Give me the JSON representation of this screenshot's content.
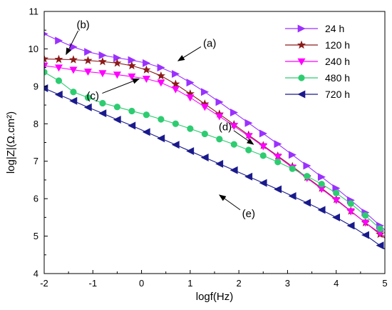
{
  "chart_data": {
    "type": "line",
    "xlabel": "logf(Hz)",
    "ylabel": "log|Z|(Ω.cm²)",
    "xlim": [
      -2,
      5
    ],
    "ylim": [
      4,
      11
    ],
    "x_ticks": [
      "-2",
      "-1",
      "0",
      "1",
      "2",
      "3",
      "4",
      "5"
    ],
    "y_ticks": [
      "4",
      "5",
      "6",
      "7",
      "8",
      "9",
      "10",
      "11"
    ],
    "grid": false,
    "legend_position": "top-right",
    "series": [
      {
        "name": "24 h",
        "color": "#9b30ff",
        "marker": "triangle-right",
        "x": [
          -2.0,
          -1.7,
          -1.4,
          -1.1,
          -0.8,
          -0.5,
          -0.2,
          0.1,
          0.4,
          0.7,
          1.0,
          1.3,
          1.6,
          1.9,
          2.2,
          2.5,
          2.8,
          3.1,
          3.4,
          3.7,
          4.0,
          4.3,
          4.6,
          4.9
        ],
        "y": [
          10.4,
          10.22,
          10.05,
          9.92,
          9.83,
          9.76,
          9.7,
          9.62,
          9.5,
          9.33,
          9.1,
          8.85,
          8.58,
          8.3,
          8.02,
          7.74,
          7.46,
          7.17,
          6.88,
          6.58,
          6.28,
          5.96,
          5.63,
          5.28
        ]
      },
      {
        "name": "120 h",
        "color": "#8b1a1a",
        "marker": "star",
        "x": [
          -2.0,
          -1.7,
          -1.4,
          -1.1,
          -0.8,
          -0.5,
          -0.2,
          0.1,
          0.4,
          0.7,
          1.0,
          1.3,
          1.6,
          1.9,
          2.2,
          2.5,
          2.8,
          3.1,
          3.4,
          3.7,
          4.0,
          4.3,
          4.6,
          4.9
        ],
        "y": [
          9.73,
          9.72,
          9.71,
          9.69,
          9.66,
          9.62,
          9.55,
          9.44,
          9.28,
          9.06,
          8.8,
          8.53,
          8.26,
          7.98,
          7.7,
          7.42,
          7.14,
          6.86,
          6.57,
          6.28,
          5.98,
          5.67,
          5.36,
          5.05
        ]
      },
      {
        "name": "240 h",
        "color": "#ff00ff",
        "marker": "triangle-down",
        "x": [
          -2.0,
          -1.7,
          -1.4,
          -1.1,
          -0.8,
          -0.5,
          -0.2,
          0.1,
          0.4,
          0.7,
          1.0,
          1.3,
          1.6,
          1.9,
          2.2,
          2.5,
          2.8,
          3.1,
          3.4,
          3.7,
          4.0,
          4.3,
          4.6,
          4.9
        ],
        "y": [
          9.55,
          9.5,
          9.44,
          9.39,
          9.35,
          9.31,
          9.26,
          9.2,
          9.1,
          8.92,
          8.7,
          8.45,
          8.2,
          7.94,
          7.67,
          7.4,
          7.12,
          6.83,
          6.55,
          6.26,
          5.96,
          5.66,
          5.36,
          5.08
        ]
      },
      {
        "name": "480 h",
        "color": "#2ecc71",
        "marker": "circle",
        "x": [
          -2.0,
          -1.7,
          -1.4,
          -1.1,
          -0.8,
          -0.5,
          -0.2,
          0.1,
          0.4,
          0.7,
          1.0,
          1.3,
          1.6,
          1.9,
          2.2,
          2.5,
          2.8,
          3.1,
          3.4,
          3.7,
          4.0,
          4.3,
          4.6,
          4.9
        ],
        "y": [
          9.38,
          9.15,
          8.85,
          8.7,
          8.55,
          8.45,
          8.34,
          8.24,
          8.12,
          8.0,
          7.87,
          7.73,
          7.59,
          7.45,
          7.3,
          7.15,
          6.98,
          6.8,
          6.6,
          6.39,
          6.15,
          5.87,
          5.55,
          5.2
        ]
      },
      {
        "name": "720 h",
        "color": "#1a1a8c",
        "marker": "triangle-left",
        "x": [
          -2.0,
          -1.7,
          -1.4,
          -1.1,
          -0.8,
          -0.5,
          -0.2,
          0.1,
          0.4,
          0.7,
          1.0,
          1.3,
          1.6,
          1.9,
          2.2,
          2.5,
          2.8,
          3.1,
          3.4,
          3.7,
          4.0,
          4.3,
          4.6,
          4.9
        ],
        "y": [
          8.95,
          8.78,
          8.61,
          8.44,
          8.28,
          8.11,
          7.95,
          7.78,
          7.61,
          7.44,
          7.27,
          7.1,
          6.93,
          6.76,
          6.59,
          6.42,
          6.25,
          6.07,
          5.89,
          5.7,
          5.5,
          5.28,
          5.03,
          4.75
        ]
      }
    ],
    "annotations": [
      {
        "label": "(a)",
        "text_x": 1.4,
        "text_y": 10.15,
        "arrow_to_x": 0.75,
        "arrow_to_y": 9.68
      },
      {
        "label": "(b)",
        "text_x": -1.2,
        "text_y": 10.65,
        "arrow_to_x": -1.55,
        "arrow_to_y": 9.85
      },
      {
        "label": "(c)",
        "text_x": -1.0,
        "text_y": 8.75,
        "arrow_to_x": -0.05,
        "arrow_to_y": 9.2
      },
      {
        "label": "(d)",
        "text_x": 1.72,
        "text_y": 7.92,
        "arrow_to_x": 2.3,
        "arrow_to_y": 7.45
      },
      {
        "label": "(e)",
        "text_x": 2.2,
        "text_y": 5.6,
        "arrow_to_x": 1.6,
        "arrow_to_y": 6.1
      }
    ]
  }
}
